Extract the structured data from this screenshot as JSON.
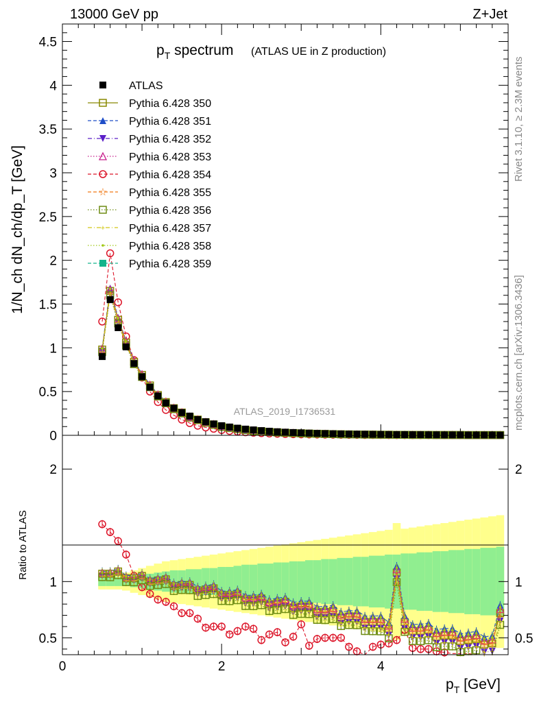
{
  "header": {
    "left": "13000 GeV pp",
    "right": "Z+Jet"
  },
  "side_labels": {
    "rivet": "Rivet 3.1.10, ≥ 2.3M events",
    "mcplots": "mcplots.cern.ch [arXiv:1306.3436]"
  },
  "colors": {
    "band_green": "#90ee90",
    "band_yellow": "#ffff8c",
    "atlas": "#000000"
  },
  "chart_data": [
    {
      "type": "scatter",
      "title_main": "p",
      "title_sub": "T",
      "title_main2": " spectrum",
      "title_small": "(ATLAS UE in Z production)",
      "analysis_label": "ATLAS_2019_I1736531",
      "ylabel": "1/N_ch dN_ch/dp_T [GeV]",
      "xlim": [
        0,
        5.6
      ],
      "ylim": [
        0,
        4.7
      ],
      "yticks": [
        "0",
        "0.5",
        "1",
        "1.5",
        "2",
        "2.5",
        "3",
        "3.5",
        "4",
        "4.5"
      ],
      "grid": false,
      "legend_position": "top-left",
      "x": [
        0.5,
        0.6,
        0.7,
        0.8,
        0.9,
        1.0,
        1.1,
        1.2,
        1.3,
        1.4,
        1.5,
        1.6,
        1.7,
        1.8,
        1.9,
        2.0,
        2.1,
        2.2,
        2.3,
        2.4,
        2.5,
        2.6,
        2.7,
        2.8,
        2.9,
        3.0,
        3.1,
        3.2,
        3.3,
        3.4,
        3.5,
        3.6,
        3.7,
        3.8,
        3.9,
        4.0,
        4.1,
        4.2,
        4.3,
        4.4,
        4.5,
        4.6,
        4.7,
        4.8,
        4.9,
        5.0,
        5.1,
        5.2,
        5.3,
        5.4,
        5.5
      ],
      "series": [
        {
          "name": "ATLAS",
          "values": [
            0.9,
            1.55,
            1.23,
            1.01,
            0.82,
            0.67,
            0.55,
            0.45,
            0.37,
            0.31,
            0.26,
            0.22,
            0.18,
            0.155,
            0.13,
            0.11,
            0.095,
            0.082,
            0.071,
            0.062,
            0.054,
            0.047,
            0.041,
            0.036,
            0.032,
            0.028,
            0.025,
            0.022,
            0.02,
            0.018,
            0.016,
            0.014,
            0.013,
            0.012,
            0.011,
            0.01,
            0.009,
            0.008,
            0.008,
            0.007,
            0.007,
            0.006,
            0.006,
            0.005,
            0.005,
            0.005,
            0.004,
            0.004,
            0.004,
            0.004,
            0.003
          ]
        },
        {
          "name": "Pythia 6.428 354",
          "values": [
            1.3,
            2.08,
            1.52,
            1.13,
            0.86,
            0.66,
            0.5,
            0.38,
            0.29,
            0.23,
            0.18,
            0.14,
            0.11,
            0.09,
            0.075,
            0.06,
            0.05,
            0.042,
            0.035,
            0.03,
            0.025,
            0.021,
            0.018,
            0.015,
            0.013,
            0.011,
            0.01,
            0.009,
            0.008,
            0.007,
            0.006,
            0.005,
            0.005,
            0.004,
            0.004,
            0.004,
            0.003,
            0.003,
            0.003,
            0.003,
            0.003,
            0.003,
            0.003,
            0.003,
            0.003,
            0.003,
            0.003,
            0.003,
            0.003,
            0.003,
            0.003
          ]
        },
        {
          "name": "Pythia 6.428 350",
          "values": [
            0.98,
            1.65,
            1.32,
            1.06,
            0.84,
            0.69,
            0.57,
            0.46,
            0.38,
            0.31,
            0.26,
            0.21,
            0.18,
            0.15,
            0.125,
            0.1,
            0.086,
            0.073,
            0.062,
            0.052,
            0.046,
            0.039,
            0.034,
            0.03,
            0.026,
            0.023,
            0.02,
            0.018,
            0.016,
            0.014,
            0.012,
            0.011,
            0.01,
            0.009,
            0.008,
            0.007,
            0.007,
            0.006,
            0.006,
            0.005,
            0.005,
            0.005,
            0.004,
            0.004,
            0.004,
            0.004,
            0.003,
            0.003,
            0.003,
            0.003,
            0.003
          ]
        }
      ]
    },
    {
      "type": "scatter",
      "ylabel": "Ratio to ATLAS",
      "xlabel_main": "p",
      "xlabel_sub": "T",
      "xlabel_unit": " [GeV]",
      "xlim": [
        0,
        5.6
      ],
      "ylim": [
        0.35,
        2.3
      ],
      "yticks": [
        "0.5",
        "1",
        "2"
      ],
      "xticks": [
        "0",
        "2",
        "4"
      ],
      "reference_line": 1,
      "series": [
        {
          "name": "Pythia 6.428 354",
          "values": [
            1.51,
            1.44,
            1.36,
            1.24,
            1.05,
            0.95,
            0.89,
            0.84,
            0.82,
            0.78,
            0.72,
            0.72,
            0.67,
            0.59,
            0.6,
            0.6,
            0.53,
            0.56,
            0.6,
            0.58,
            0.48,
            0.53,
            0.55,
            0.46,
            0.51,
            0.62,
            0.43,
            0.49,
            0.5,
            0.5,
            0.5,
            0.42,
            0.38,
            0.35,
            0.42,
            0.44,
            0.45,
            0.48,
            0.57,
            0.41,
            0.4,
            0.4,
            0.38,
            0.37,
            0.36,
            0.36,
            0.36,
            0.35,
            0.35,
            0.35,
            0.35
          ]
        },
        {
          "name": "Pythia 6.428 350",
          "values": [
            1.09,
            1.07,
            1.07,
            1.05,
            1.03,
            1.03,
            1.02,
            1.01,
            1.0,
            0.98,
            0.97,
            0.95,
            0.94,
            0.93,
            0.92,
            0.9,
            0.88,
            0.87,
            0.86,
            0.84,
            0.83,
            0.82,
            0.81,
            0.8,
            0.79,
            0.78,
            0.76,
            0.75,
            0.73,
            0.72,
            0.7,
            0.69,
            0.67,
            0.66,
            0.64,
            0.62,
            0.6,
            1.08,
            0.62,
            0.58,
            0.56,
            0.55,
            0.53,
            0.52,
            0.5,
            0.49,
            0.48,
            0.47,
            0.46,
            0.45,
            0.7
          ]
        }
      ],
      "band_green_half_width": [
        0.04,
        0.04,
        0.04,
        0.04,
        0.05,
        0.06,
        0.07,
        0.08,
        0.09,
        0.1,
        0.1,
        0.11,
        0.11,
        0.12,
        0.12,
        0.13,
        0.13,
        0.14,
        0.15,
        0.15,
        0.16,
        0.16,
        0.17,
        0.17,
        0.18,
        0.18,
        0.19,
        0.19,
        0.2,
        0.2,
        0.21,
        0.21,
        0.22,
        0.22,
        0.23,
        0.23,
        0.24,
        0.24,
        0.25,
        0.25,
        0.26,
        0.26,
        0.27,
        0.27,
        0.28,
        0.28,
        0.29,
        0.29,
        0.3,
        0.3,
        0.31
      ],
      "band_yellow_half_width": [
        0.07,
        0.07,
        0.07,
        0.08,
        0.1,
        0.12,
        0.14,
        0.16,
        0.18,
        0.19,
        0.2,
        0.21,
        0.22,
        0.23,
        0.24,
        0.25,
        0.26,
        0.27,
        0.28,
        0.29,
        0.3,
        0.31,
        0.32,
        0.33,
        0.34,
        0.35,
        0.36,
        0.37,
        0.38,
        0.39,
        0.4,
        0.41,
        0.42,
        0.43,
        0.44,
        0.45,
        0.46,
        0.52,
        0.47,
        0.48,
        0.49,
        0.5,
        0.51,
        0.52,
        0.53,
        0.54,
        0.55,
        0.56,
        0.57,
        0.58,
        0.59
      ]
    }
  ],
  "legend": [
    {
      "label": "ATLAS",
      "color": "#000000",
      "marker": "square-filled",
      "line": "none"
    },
    {
      "label": "Pythia 6.428 350",
      "color": "#888800",
      "marker": "square-open",
      "line": "solid"
    },
    {
      "label": "Pythia 6.428 351",
      "color": "#1f4ec8",
      "marker": "triangle-up-filled",
      "line": "dashed"
    },
    {
      "label": "Pythia 6.428 352",
      "color": "#5a1ec8",
      "marker": "triangle-down-filled",
      "line": "dashdot"
    },
    {
      "label": "Pythia 6.428 353",
      "color": "#c81e8c",
      "marker": "triangle-up-open",
      "line": "dotted"
    },
    {
      "label": "Pythia 6.428 354",
      "color": "#dc1428",
      "marker": "circle-open",
      "line": "dashed"
    },
    {
      "label": "Pythia 6.428 355",
      "color": "#f07814",
      "marker": "star-open",
      "line": "dashed"
    },
    {
      "label": "Pythia 6.428 356",
      "color": "#6e8c14",
      "marker": "square-open",
      "line": "dotted"
    },
    {
      "label": "Pythia 6.428 357",
      "color": "#d2c814",
      "marker": "cross",
      "line": "dashdot"
    },
    {
      "label": "Pythia 6.428 358",
      "color": "#a0c814",
      "marker": "dot",
      "line": "dotted"
    },
    {
      "label": "Pythia 6.428 359",
      "color": "#14b48c",
      "marker": "square-filled",
      "line": "dashed"
    }
  ]
}
